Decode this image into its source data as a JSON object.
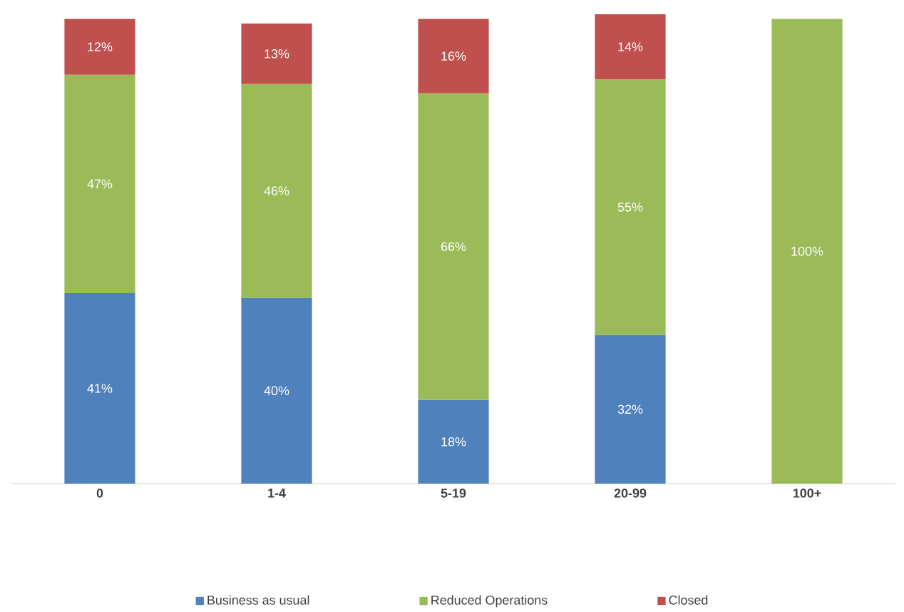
{
  "chart_data": {
    "type": "bar",
    "stacked": true,
    "categories": [
      "0",
      "1-4",
      "5-19",
      "20-99",
      "100+"
    ],
    "series": [
      {
        "name": "Business as usual",
        "color": "#4f81bd",
        "values": [
          41,
          40,
          18,
          32,
          null
        ],
        "value_labels": [
          "41%",
          "40%",
          "18%",
          "32%",
          null
        ]
      },
      {
        "name": "Reduced Operations",
        "color": "#9bbb59",
        "values": [
          47,
          46,
          66,
          55,
          100
        ],
        "value_labels": [
          "47%",
          "46%",
          "66%",
          "55%",
          "100%"
        ]
      },
      {
        "name": "Closed",
        "color": "#c0504d",
        "values": [
          12,
          13,
          16,
          14,
          null
        ],
        "value_labels": [
          "12%",
          "13%",
          "16%",
          "14%",
          null
        ]
      }
    ],
    "ylim": [
      0,
      101
    ],
    "tick_labels": "x",
    "legend": "bottom"
  }
}
